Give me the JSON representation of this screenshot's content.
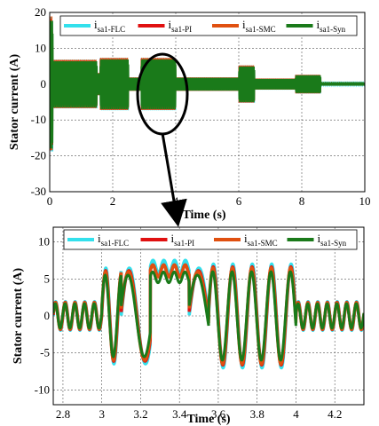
{
  "chart_data": [
    {
      "type": "line",
      "xlabel": "Time (s)",
      "ylabel": "Stator current (A)",
      "xlim": [
        0,
        10
      ],
      "ylim": [
        -30,
        20
      ],
      "x_ticks": [
        0,
        2,
        4,
        6,
        8,
        10
      ],
      "y_ticks": [
        -30,
        -20,
        -10,
        0,
        10,
        20
      ],
      "grid": true,
      "legend_position": "top",
      "series": [
        {
          "name_main": "i",
          "name_sub": "sa1-FLC",
          "color": "#33e0ec"
        },
        {
          "name_main": "i",
          "name_sub": "sa1-PI",
          "color": "#e01010"
        },
        {
          "name_main": "i",
          "name_sub": "sa1-SMC",
          "color": "#e05010"
        },
        {
          "name_main": "i",
          "name_sub": "sa1-Syn",
          "color": "#1a7a1a"
        }
      ],
      "envelope": [
        {
          "t0": 0.0,
          "t1": 0.1,
          "amp": 18
        },
        {
          "t0": 0.1,
          "t1": 1.5,
          "amp": 6.5
        },
        {
          "t0": 1.5,
          "t1": 1.6,
          "amp": 3
        },
        {
          "t0": 1.6,
          "t1": 2.5,
          "amp": 7
        },
        {
          "t0": 2.5,
          "t1": 2.9,
          "amp": 1.8
        },
        {
          "t0": 2.9,
          "t1": 4.0,
          "amp": 7
        },
        {
          "t0": 4.0,
          "t1": 6.0,
          "amp": 1.8
        },
        {
          "t0": 6.0,
          "t1": 6.5,
          "amp": 5
        },
        {
          "t0": 6.5,
          "t1": 7.8,
          "amp": 1.5
        },
        {
          "t0": 7.8,
          "t1": 8.6,
          "amp": 2.5
        },
        {
          "t0": 8.6,
          "t1": 10.0,
          "amp": 0.4
        }
      ]
    },
    {
      "type": "line",
      "xlabel": "Time (s)",
      "ylabel": "Stator current (A)",
      "xlim": [
        2.75,
        4.35
      ],
      "ylim": [
        -12,
        12
      ],
      "x_ticks": [
        2.8,
        3,
        3.2,
        3.4,
        3.6,
        3.8,
        4,
        4.2
      ],
      "y_ticks": [
        -10,
        -5,
        0,
        5,
        10
      ],
      "grid": true,
      "legend_position": "top",
      "series": [
        {
          "name_main": "i",
          "name_sub": "sa1-FLC",
          "color": "#33e0ec"
        },
        {
          "name_main": "i",
          "name_sub": "sa1-PI",
          "color": "#e01010"
        },
        {
          "name_main": "i",
          "name_sub": "sa1-SMC",
          "color": "#e05010"
        },
        {
          "name_main": "i",
          "name_sub": "sa1-Syn",
          "color": "#1a7a1a"
        }
      ],
      "segments": [
        {
          "t0": 2.75,
          "t1": 3.0,
          "amp": 1.8,
          "freq": 20,
          "offset": 0
        },
        {
          "t0": 3.0,
          "t1": 3.1,
          "amp": 6,
          "freq": 12,
          "offset": 0
        },
        {
          "t0": 3.1,
          "t1": 3.25,
          "amp": 6,
          "freq": 6,
          "offset": 0
        },
        {
          "t0": 3.25,
          "t1": 3.45,
          "amp": 0.8,
          "freq": 18,
          "offset": 5.8
        },
        {
          "t0": 3.45,
          "t1": 3.55,
          "amp": 6,
          "freq": 5,
          "offset": 0
        },
        {
          "t0": 3.55,
          "t1": 4.0,
          "amp": 6.5,
          "freq": 10,
          "offset": 0
        },
        {
          "t0": 4.0,
          "t1": 4.35,
          "amp": 1.8,
          "freq": 20,
          "offset": 0
        }
      ]
    }
  ],
  "annotation": {
    "type": "zoom-ellipse-arrow"
  }
}
